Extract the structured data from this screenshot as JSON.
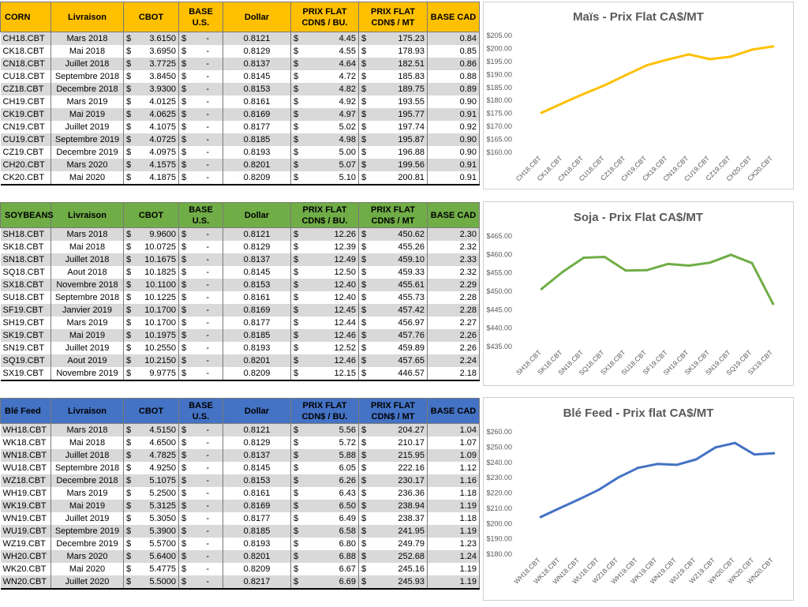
{
  "headers": {
    "delivery": "Livraison",
    "cbot": "CBOT",
    "base_us": "BASE U.S.",
    "dollar": "Dollar",
    "prix_flat": "PRIX FLAT",
    "per_bu": "CDN$ / BU.",
    "per_mt": "CDN$ / MT",
    "base_cad": "BASE CAD"
  },
  "colors": {
    "corn": "#ffc000",
    "soy": "#70ad47",
    "wheat": "#4472c4",
    "corn_line": "#ffc000",
    "soy_line": "#70ad47",
    "wheat_line": "#4472c4"
  },
  "tables": [
    {
      "id": "corn",
      "name": "CORN",
      "rows": [
        {
          "contract": "CH18.CBT",
          "month": "Mars 2018",
          "cbot": "3.6150",
          "base_us": "-",
          "dollar": "0.8121",
          "flat_bu": "4.45",
          "flat_mt": "175.23",
          "base_cad": "0.84"
        },
        {
          "contract": "CK18.CBT",
          "month": "Mai 2018",
          "cbot": "3.6950",
          "base_us": "-",
          "dollar": "0.8129",
          "flat_bu": "4.55",
          "flat_mt": "178.93",
          "base_cad": "0.85"
        },
        {
          "contract": "CN18.CBT",
          "month": "Juillet 2018",
          "cbot": "3.7725",
          "base_us": "-",
          "dollar": "0.8137",
          "flat_bu": "4.64",
          "flat_mt": "182.51",
          "base_cad": "0.86"
        },
        {
          "contract": "CU18.CBT",
          "month": "Septembre 2018",
          "cbot": "3.8450",
          "base_us": "-",
          "dollar": "0.8145",
          "flat_bu": "4.72",
          "flat_mt": "185.83",
          "base_cad": "0.88"
        },
        {
          "contract": "CZ18.CBT",
          "month": "Decembre 2018",
          "cbot": "3.9300",
          "base_us": "-",
          "dollar": "0.8153",
          "flat_bu": "4.82",
          "flat_mt": "189.75",
          "base_cad": "0.89"
        },
        {
          "contract": "CH19.CBT",
          "month": "Mars 2019",
          "cbot": "4.0125",
          "base_us": "-",
          "dollar": "0.8161",
          "flat_bu": "4.92",
          "flat_mt": "193.55",
          "base_cad": "0.90"
        },
        {
          "contract": "CK19.CBT",
          "month": "Mai 2019",
          "cbot": "4.0625",
          "base_us": "-",
          "dollar": "0.8169",
          "flat_bu": "4.97",
          "flat_mt": "195.77",
          "base_cad": "0.91"
        },
        {
          "contract": "CN19.CBT",
          "month": "Juillet 2019",
          "cbot": "4.1075",
          "base_us": "-",
          "dollar": "0.8177",
          "flat_bu": "5.02",
          "flat_mt": "197.74",
          "base_cad": "0.92"
        },
        {
          "contract": "CU19.CBT",
          "month": "Septembre 2019",
          "cbot": "4.0725",
          "base_us": "-",
          "dollar": "0.8185",
          "flat_bu": "4.98",
          "flat_mt": "195.87",
          "base_cad": "0.90"
        },
        {
          "contract": "CZ19.CBT",
          "month": "Decembre 2019",
          "cbot": "4.0975",
          "base_us": "-",
          "dollar": "0.8193",
          "flat_bu": "5.00",
          "flat_mt": "196.88",
          "base_cad": "0.90"
        },
        {
          "contract": "CH20.CBT",
          "month": "Mars 2020",
          "cbot": "4.1575",
          "base_us": "-",
          "dollar": "0.8201",
          "flat_bu": "5.07",
          "flat_mt": "199.56",
          "base_cad": "0.91"
        },
        {
          "contract": "CK20.CBT",
          "month": "Mai 2020",
          "cbot": "4.1875",
          "base_us": "-",
          "dollar": "0.8209",
          "flat_bu": "5.10",
          "flat_mt": "200.81",
          "base_cad": "0.91"
        }
      ]
    },
    {
      "id": "soy",
      "name": "SOYBEANS",
      "rows": [
        {
          "contract": "SH18.CBT",
          "month": "Mars 2018",
          "cbot": "9.9600",
          "base_us": "-",
          "dollar": "0.8121",
          "flat_bu": "12.26",
          "flat_mt": "450.62",
          "base_cad": "2.30"
        },
        {
          "contract": "SK18.CBT",
          "month": "Mai 2018",
          "cbot": "10.0725",
          "base_us": "-",
          "dollar": "0.8129",
          "flat_bu": "12.39",
          "flat_mt": "455.26",
          "base_cad": "2.32"
        },
        {
          "contract": "SN18.CBT",
          "month": "Juillet 2018",
          "cbot": "10.1675",
          "base_us": "-",
          "dollar": "0.8137",
          "flat_bu": "12.49",
          "flat_mt": "459.10",
          "base_cad": "2.33"
        },
        {
          "contract": "SQ18.CBT",
          "month": "Aout 2018",
          "cbot": "10.1825",
          "base_us": "-",
          "dollar": "0.8145",
          "flat_bu": "12.50",
          "flat_mt": "459.33",
          "base_cad": "2.32"
        },
        {
          "contract": "SX18.CBT",
          "month": "Novembre 2018",
          "cbot": "10.1100",
          "base_us": "-",
          "dollar": "0.8153",
          "flat_bu": "12.40",
          "flat_mt": "455.61",
          "base_cad": "2.29"
        },
        {
          "contract": "SU18.CBT",
          "month": "Septembre 2018",
          "cbot": "10.1225",
          "base_us": "-",
          "dollar": "0.8161",
          "flat_bu": "12.40",
          "flat_mt": "455.73",
          "base_cad": "2.28"
        },
        {
          "contract": "SF19.CBT",
          "month": "Janvier 2019",
          "cbot": "10.1700",
          "base_us": "-",
          "dollar": "0.8169",
          "flat_bu": "12.45",
          "flat_mt": "457.42",
          "base_cad": "2.28"
        },
        {
          "contract": "SH19.CBT",
          "month": "Mars 2019",
          "cbot": "10.1700",
          "base_us": "-",
          "dollar": "0.8177",
          "flat_bu": "12.44",
          "flat_mt": "456.97",
          "base_cad": "2.27"
        },
        {
          "contract": "SK19.CBT",
          "month": "Mai 2019",
          "cbot": "10.1975",
          "base_us": "-",
          "dollar": "0.8185",
          "flat_bu": "12.46",
          "flat_mt": "457.76",
          "base_cad": "2.26"
        },
        {
          "contract": "SN19.CBT",
          "month": "Juillet 2019",
          "cbot": "10.2550",
          "base_us": "-",
          "dollar": "0.8193",
          "flat_bu": "12.52",
          "flat_mt": "459.89",
          "base_cad": "2.26"
        },
        {
          "contract": "SQ19.CBT",
          "month": "Aout 2019",
          "cbot": "10.2150",
          "base_us": "-",
          "dollar": "0.8201",
          "flat_bu": "12.46",
          "flat_mt": "457.65",
          "base_cad": "2.24"
        },
        {
          "contract": "SX19.CBT",
          "month": "Novembre 2019",
          "cbot": "9.9775",
          "base_us": "-",
          "dollar": "0.8209",
          "flat_bu": "12.15",
          "flat_mt": "446.57",
          "base_cad": "2.18"
        }
      ]
    },
    {
      "id": "wheat",
      "name": "Blé Feed",
      "rows": [
        {
          "contract": "WH18.CBT",
          "month": "Mars 2018",
          "cbot": "4.5150",
          "base_us": "-",
          "dollar": "0.8121",
          "flat_bu": "5.56",
          "flat_mt": "204.27",
          "base_cad": "1.04"
        },
        {
          "contract": "WK18.CBT",
          "month": "Mai 2018",
          "cbot": "4.6500",
          "base_us": "-",
          "dollar": "0.8129",
          "flat_bu": "5.72",
          "flat_mt": "210.17",
          "base_cad": "1.07"
        },
        {
          "contract": "WN18.CBT",
          "month": "Juillet 2018",
          "cbot": "4.7825",
          "base_us": "-",
          "dollar": "0.8137",
          "flat_bu": "5.88",
          "flat_mt": "215.95",
          "base_cad": "1.09"
        },
        {
          "contract": "WU18.CBT",
          "month": "Septembre 2018",
          "cbot": "4.9250",
          "base_us": "-",
          "dollar": "0.8145",
          "flat_bu": "6.05",
          "flat_mt": "222.16",
          "base_cad": "1.12"
        },
        {
          "contract": "WZ18.CBT",
          "month": "Decembre 2018",
          "cbot": "5.1075",
          "base_us": "-",
          "dollar": "0.8153",
          "flat_bu": "6.26",
          "flat_mt": "230.17",
          "base_cad": "1.16"
        },
        {
          "contract": "WH19.CBT",
          "month": "Mars 2019",
          "cbot": "5.2500",
          "base_us": "-",
          "dollar": "0.8161",
          "flat_bu": "6.43",
          "flat_mt": "236.36",
          "base_cad": "1.18"
        },
        {
          "contract": "WK19.CBT",
          "month": "Mai 2019",
          "cbot": "5.3125",
          "base_us": "-",
          "dollar": "0.8169",
          "flat_bu": "6.50",
          "flat_mt": "238.94",
          "base_cad": "1.19"
        },
        {
          "contract": "WN19.CBT",
          "month": "Juillet 2019",
          "cbot": "5.3050",
          "base_us": "-",
          "dollar": "0.8177",
          "flat_bu": "6.49",
          "flat_mt": "238.37",
          "base_cad": "1.18"
        },
        {
          "contract": "WU19.CBT",
          "month": "Septembre 2019",
          "cbot": "5.3900",
          "base_us": "-",
          "dollar": "0.8185",
          "flat_bu": "6.58",
          "flat_mt": "241.95",
          "base_cad": "1.19"
        },
        {
          "contract": "WZ19.CBT",
          "month": "Decembre 2019",
          "cbot": "5.5700",
          "base_us": "-",
          "dollar": "0.8193",
          "flat_bu": "6.80",
          "flat_mt": "249.79",
          "base_cad": "1.23"
        },
        {
          "contract": "WH20.CBT",
          "month": "Mars 2020",
          "cbot": "5.6400",
          "base_us": "-",
          "dollar": "0.8201",
          "flat_bu": "6.88",
          "flat_mt": "252.68",
          "base_cad": "1.24"
        },
        {
          "contract": "WK20.CBT",
          "month": "Mai 2020",
          "cbot": "5.4775",
          "base_us": "-",
          "dollar": "0.8209",
          "flat_bu": "6.67",
          "flat_mt": "245.16",
          "base_cad": "1.19"
        },
        {
          "contract": "WN20.CBT",
          "month": "Juillet 2020",
          "cbot": "5.5000",
          "base_us": "-",
          "dollar": "0.8217",
          "flat_bu": "6.69",
          "flat_mt": "245.93",
          "base_cad": "1.19"
        }
      ]
    }
  ],
  "chart_data": [
    {
      "type": "line",
      "title": "Maïs - Prix Flat CA$/MT",
      "categories": [
        "CH18.CBT",
        "CK18.CBT",
        "CN18.CBT",
        "CU18.CBT",
        "CZ18.CBT",
        "CH19.CBT",
        "CK19.CBT",
        "CN19.CBT",
        "CU19.CBT",
        "CZ19.CBT",
        "CH20.CBT",
        "CK20.CBT"
      ],
      "values": [
        175.23,
        178.93,
        182.51,
        185.83,
        189.75,
        193.55,
        195.77,
        197.74,
        195.87,
        196.88,
        199.56,
        200.81
      ],
      "ylim": [
        160,
        205
      ],
      "yticks": [
        "$160.00",
        "$165.00",
        "$170.00",
        "$175.00",
        "$180.00",
        "$185.00",
        "$190.00",
        "$195.00",
        "$200.00",
        "$205.00"
      ],
      "xlabel": "",
      "ylabel": "",
      "legend": "none",
      "grid": false
    },
    {
      "type": "line",
      "title": "Soja - Prix Flat CA$/MT",
      "categories": [
        "SH18.CBT",
        "SK18.CBT",
        "SN18.CBT",
        "SQ18.CBT",
        "SX18.CBT",
        "SU18.CBT",
        "SF19.CBT",
        "SH19.CBT",
        "SK19.CBT",
        "SN19.CBT",
        "SQ19.CBT",
        "SX19.CBT"
      ],
      "values": [
        450.62,
        455.26,
        459.1,
        459.33,
        455.61,
        455.73,
        457.42,
        456.97,
        457.76,
        459.89,
        457.65,
        446.57
      ],
      "ylim": [
        435,
        465
      ],
      "yticks": [
        "$435.00",
        "$440.00",
        "$445.00",
        "$450.00",
        "$455.00",
        "$460.00",
        "$465.00"
      ],
      "xlabel": "",
      "ylabel": "",
      "legend": "none",
      "grid": false
    },
    {
      "type": "line",
      "title": "Blé Feed - Prix flat CA$/MT",
      "categories": [
        "WH18.CBT",
        "WK18.CBT",
        "WN18.CBT",
        "WU18.CBT",
        "WZ18.CBT",
        "WH19.CBT",
        "WK19.CBT",
        "WN19.CBT",
        "WU19.CBT",
        "WZ19.CBT",
        "WH20.CBT",
        "WK20.CBT",
        "WN20.CBT"
      ],
      "values": [
        204.27,
        210.17,
        215.95,
        222.16,
        230.17,
        236.36,
        238.94,
        238.37,
        241.95,
        249.79,
        252.68,
        245.16,
        245.93
      ],
      "ylim": [
        180,
        260
      ],
      "yticks": [
        "$180.00",
        "$190.00",
        "$200.00",
        "$210.00",
        "$220.00",
        "$230.00",
        "$240.00",
        "$250.00",
        "$260.00"
      ],
      "xlabel": "",
      "ylabel": "",
      "legend": "none",
      "grid": false
    }
  ]
}
